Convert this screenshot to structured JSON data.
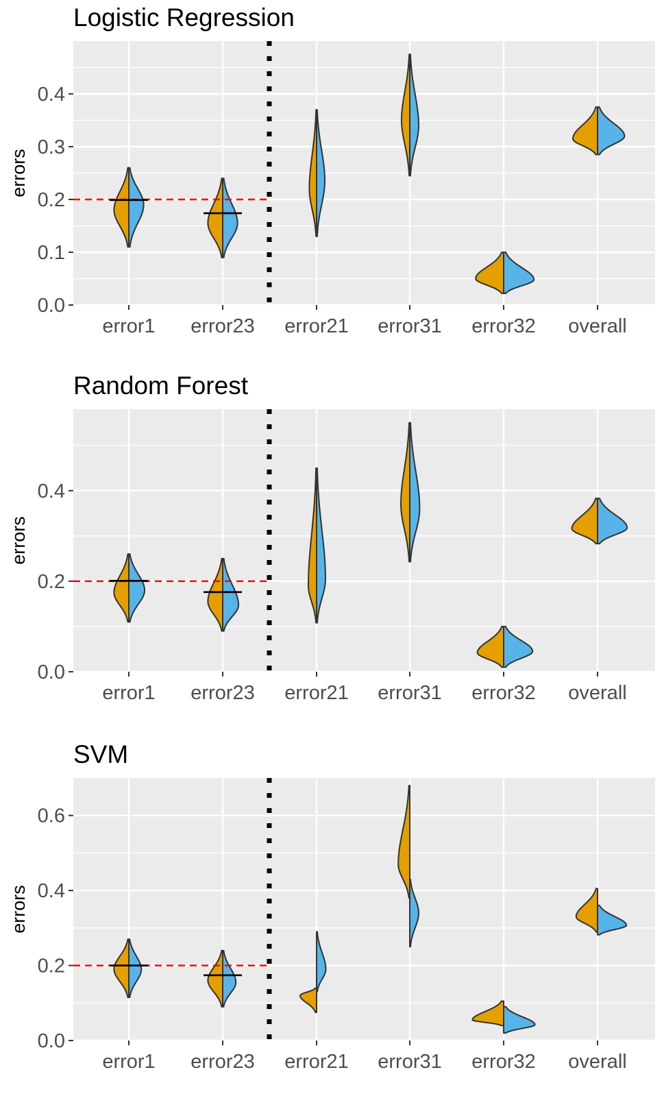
{
  "colors": {
    "panel_background": "#ebebeb",
    "grid": "#ffffff",
    "violin_left_fill": "#e69f00",
    "violin_right_fill": "#56b4e9",
    "violin_stroke": "#333333",
    "reference_line": "#ff0000",
    "threshold_marker": "#000000",
    "separator": "#000000"
  },
  "chart_data": [
    {
      "type": "split-violin",
      "title": "Logistic Regression",
      "ylabel": "errors",
      "xlabel": "",
      "categories": [
        "error1",
        "error23",
        "error21",
        "error31",
        "error32",
        "overall"
      ],
      "ylim": [
        0,
        0.5
      ],
      "yticks": [
        0.0,
        0.1,
        0.2,
        0.3,
        0.4
      ],
      "ytick_labels": [
        "0.0",
        "0.1",
        "0.2",
        "0.3",
        "0.4"
      ],
      "reference_line": {
        "y": 0.2,
        "style": "dashed",
        "from_category": "error1",
        "to_category": "error23"
      },
      "separator_after_category": "error23",
      "targets": [
        {
          "category": "error1",
          "y": 0.199
        },
        {
          "category": "error23",
          "y": 0.174
        }
      ],
      "violins": [
        {
          "category": "error1",
          "left": {
            "min": 0.11,
            "max": 0.26,
            "mode": 0.18,
            "width": 0.45
          },
          "right": {
            "min": 0.11,
            "max": 0.26,
            "mode": 0.19,
            "width": 0.45
          }
        },
        {
          "category": "error23",
          "left": {
            "min": 0.09,
            "max": 0.24,
            "mode": 0.155,
            "width": 0.45
          },
          "right": {
            "min": 0.09,
            "max": 0.24,
            "mode": 0.155,
            "width": 0.45
          }
        },
        {
          "category": "error21",
          "left": {
            "min": 0.13,
            "max": 0.37,
            "mode": 0.22,
            "width": 0.22
          },
          "right": {
            "min": 0.13,
            "max": 0.37,
            "mode": 0.235,
            "width": 0.25
          }
        },
        {
          "category": "error31",
          "left": {
            "min": 0.245,
            "max": 0.475,
            "mode": 0.35,
            "width": 0.25
          },
          "right": {
            "min": 0.245,
            "max": 0.475,
            "mode": 0.34,
            "width": 0.27
          }
        },
        {
          "category": "error32",
          "left": {
            "min": 0.022,
            "max": 0.1,
            "mode": 0.05,
            "width": 0.85
          },
          "right": {
            "min": 0.022,
            "max": 0.1,
            "mode": 0.048,
            "width": 0.92
          }
        },
        {
          "category": "overall",
          "left": {
            "min": 0.285,
            "max": 0.375,
            "mode": 0.315,
            "width": 0.75
          },
          "right": {
            "min": 0.285,
            "max": 0.375,
            "mode": 0.32,
            "width": 0.82
          }
        }
      ]
    },
    {
      "type": "split-violin",
      "title": "Random Forest",
      "ylabel": "errors",
      "xlabel": "",
      "categories": [
        "error1",
        "error23",
        "error21",
        "error31",
        "error32",
        "overall"
      ],
      "ylim": [
        0,
        0.58
      ],
      "yticks": [
        0.0,
        0.2,
        0.4
      ],
      "ytick_labels": [
        "0.0",
        "0.2",
        "0.4"
      ],
      "reference_line": {
        "y": 0.2,
        "style": "dashed",
        "from_category": "error1",
        "to_category": "error23"
      },
      "separator_after_category": "error23",
      "targets": [
        {
          "category": "error1",
          "y": 0.201
        },
        {
          "category": "error23",
          "y": 0.176
        }
      ],
      "violins": [
        {
          "category": "error1",
          "left": {
            "min": 0.11,
            "max": 0.26,
            "mode": 0.175,
            "width": 0.45
          },
          "right": {
            "min": 0.11,
            "max": 0.26,
            "mode": 0.18,
            "width": 0.48
          }
        },
        {
          "category": "error23",
          "left": {
            "min": 0.09,
            "max": 0.25,
            "mode": 0.155,
            "width": 0.45
          },
          "right": {
            "min": 0.09,
            "max": 0.25,
            "mode": 0.147,
            "width": 0.48
          }
        },
        {
          "category": "error21",
          "left": {
            "min": 0.108,
            "max": 0.45,
            "mode": 0.19,
            "width": 0.25
          },
          "right": {
            "min": 0.108,
            "max": 0.45,
            "mode": 0.205,
            "width": 0.27
          }
        },
        {
          "category": "error31",
          "left": {
            "min": 0.243,
            "max": 0.55,
            "mode": 0.37,
            "width": 0.27
          },
          "right": {
            "min": 0.243,
            "max": 0.55,
            "mode": 0.36,
            "width": 0.3
          }
        },
        {
          "category": "error32",
          "left": {
            "min": 0.01,
            "max": 0.1,
            "mode": 0.042,
            "width": 0.8
          },
          "right": {
            "min": 0.01,
            "max": 0.1,
            "mode": 0.045,
            "width": 0.88
          }
        },
        {
          "category": "overall",
          "left": {
            "min": 0.283,
            "max": 0.383,
            "mode": 0.316,
            "width": 0.78
          },
          "right": {
            "min": 0.283,
            "max": 0.383,
            "mode": 0.318,
            "width": 0.9
          }
        }
      ]
    },
    {
      "type": "split-violin",
      "title": "SVM",
      "ylabel": "errors",
      "xlabel": "",
      "categories": [
        "error1",
        "error23",
        "error21",
        "error31",
        "error32",
        "overall"
      ],
      "ylim": [
        0,
        0.7
      ],
      "yticks": [
        0.0,
        0.2,
        0.4,
        0.6
      ],
      "ytick_labels": [
        "0.0",
        "0.2",
        "0.4",
        "0.6"
      ],
      "reference_line": {
        "y": 0.2,
        "style": "dashed",
        "from_category": "error1",
        "to_category": "error23"
      },
      "separator_after_category": "error23",
      "targets": [
        {
          "category": "error1",
          "y": 0.2
        },
        {
          "category": "error23",
          "y": 0.174
        }
      ],
      "violins": [
        {
          "category": "error1",
          "left": {
            "min": 0.115,
            "max": 0.27,
            "mode": 0.19,
            "width": 0.45
          },
          "right": {
            "min": 0.115,
            "max": 0.27,
            "mode": 0.19,
            "width": 0.38
          }
        },
        {
          "category": "error23",
          "left": {
            "min": 0.09,
            "max": 0.24,
            "mode": 0.16,
            "width": 0.45
          },
          "right": {
            "min": 0.09,
            "max": 0.24,
            "mode": 0.155,
            "width": 0.4
          }
        },
        {
          "category": "error21",
          "left": {
            "min": 0.075,
            "max": 0.14,
            "mode": 0.12,
            "width": 0.5
          },
          "right": {
            "min": 0.13,
            "max": 0.29,
            "mode": 0.19,
            "width": 0.28
          }
        },
        {
          "category": "error31",
          "left": {
            "min": 0.38,
            "max": 0.68,
            "mode": 0.47,
            "width": 0.35
          },
          "right": {
            "min": 0.25,
            "max": 0.43,
            "mode": 0.34,
            "width": 0.27
          }
        },
        {
          "category": "error32",
          "left": {
            "min": 0.04,
            "max": 0.105,
            "mode": 0.055,
            "width": 0.95
          },
          "right": {
            "min": 0.02,
            "max": 0.09,
            "mode": 0.042,
            "width": 0.95
          }
        },
        {
          "category": "overall",
          "left": {
            "min": 0.29,
            "max": 0.405,
            "mode": 0.33,
            "width": 0.65
          },
          "right": {
            "min": 0.282,
            "max": 0.36,
            "mode": 0.307,
            "width": 0.88
          }
        }
      ]
    }
  ]
}
